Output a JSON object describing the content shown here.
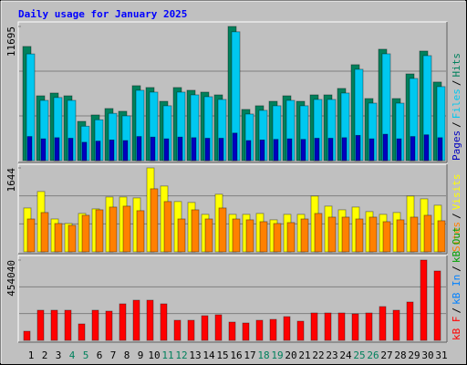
{
  "title": "Daily usage for January 2025",
  "legend_separator": "/",
  "chart_data": [
    {
      "type": "bar",
      "series": [
        {
          "name": "Hits",
          "color": "#00805c",
          "values": [
            9950,
            5650,
            5890,
            5650,
            3420,
            3980,
            4540,
            4300,
            6530,
            6370,
            5170,
            6370,
            6130,
            5970,
            5730,
            11695,
            4460,
            4780,
            5170,
            5650,
            5170,
            5730,
            5730,
            6290,
            8360,
            5410,
            9710,
            5410,
            7560,
            9550,
            6850
          ]
        },
        {
          "name": "Files",
          "color": "#00c8f0",
          "values": [
            9300,
            5250,
            5500,
            5250,
            3000,
            3560,
            4120,
            3900,
            6130,
            5970,
            4780,
            5970,
            5730,
            5570,
            5330,
            11230,
            4060,
            4380,
            4780,
            5250,
            4780,
            5330,
            5330,
            5890,
            7960,
            5010,
            9310,
            5010,
            7160,
            9150,
            6450
          ]
        },
        {
          "name": "Pages",
          "color": "#0000c0",
          "values": [
            2100,
            1900,
            2000,
            1950,
            1600,
            1700,
            1800,
            1750,
            2100,
            2050,
            1900,
            2050,
            2000,
            1950,
            1950,
            2400,
            1750,
            1800,
            1850,
            1900,
            1850,
            1950,
            1950,
            2000,
            2200,
            1900,
            2300,
            1900,
            2100,
            2250,
            2000
          ]
        }
      ],
      "legend_extra": [],
      "ylim": [
        0,
        11695
      ],
      "yticks": [
        11695
      ]
    },
    {
      "type": "bar",
      "series": [
        {
          "name": "Visits",
          "color": "#ffff00",
          "values": [
            859,
            1181,
            644,
            555,
            752,
            841,
            1074,
            1074,
            1056,
            1644,
            1289,
            985,
            967,
            734,
            1128,
            734,
            734,
            752,
            627,
            734,
            734,
            1092,
            895,
            823,
            877,
            788,
            734,
            770,
            1092,
            1038,
            913
          ]
        },
        {
          "name": "Sites",
          "color": "#ff8000",
          "values": [
            644,
            770,
            555,
            519,
            716,
            823,
            877,
            895,
            806,
            1235,
            985,
            644,
            823,
            644,
            859,
            644,
            627,
            591,
            555,
            573,
            644,
            752,
            680,
            680,
            644,
            680,
            591,
            627,
            680,
            716,
            609
          ]
        }
      ],
      "legend_extra": [],
      "ylim": [
        0,
        1644
      ],
      "yticks": [
        1644
      ]
    },
    {
      "type": "bar",
      "series": [
        {
          "name": "kB F",
          "color": "#ff0000",
          "values": [
            51600,
            170280,
            170280,
            170280,
            92880,
            170280,
            165120,
            206400,
            227040,
            227040,
            206400,
            113520,
            113520,
            139320,
            144480,
            103200,
            98040,
            113520,
            118680,
            134160,
            108360,
            154800,
            154800,
            154800,
            149640,
            154800,
            190920,
            170280,
            216720,
            454040,
            392160
          ]
        }
      ],
      "legend_extra": [
        {
          "name": "kB In",
          "color": "#0080ff"
        },
        {
          "name": "kB Out",
          "color": "#00a000"
        }
      ],
      "categories": [
        "1",
        "2",
        "3",
        "4",
        "5",
        "6",
        "7",
        "8",
        "9",
        "10",
        "11",
        "12",
        "13",
        "14",
        "15",
        "16",
        "17",
        "18",
        "19",
        "20",
        "21",
        "22",
        "23",
        "24",
        "25",
        "26",
        "27",
        "28",
        "29",
        "30",
        "31"
      ],
      "category_colors": [
        "#000000",
        "#000000",
        "#000000",
        "#00805c",
        "#00805c",
        "#000000",
        "#000000",
        "#000000",
        "#000000",
        "#000000",
        "#00805c",
        "#00805c",
        "#000000",
        "#000000",
        "#000000",
        "#000000",
        "#000000",
        "#00805c",
        "#00805c",
        "#000000",
        "#000000",
        "#000000",
        "#000000",
        "#000000",
        "#00805c",
        "#00805c",
        "#000000",
        "#000000",
        "#000000",
        "#000000",
        "#000000"
      ],
      "ylim": [
        0,
        454040
      ],
      "yticks": [
        454040
      ]
    }
  ]
}
